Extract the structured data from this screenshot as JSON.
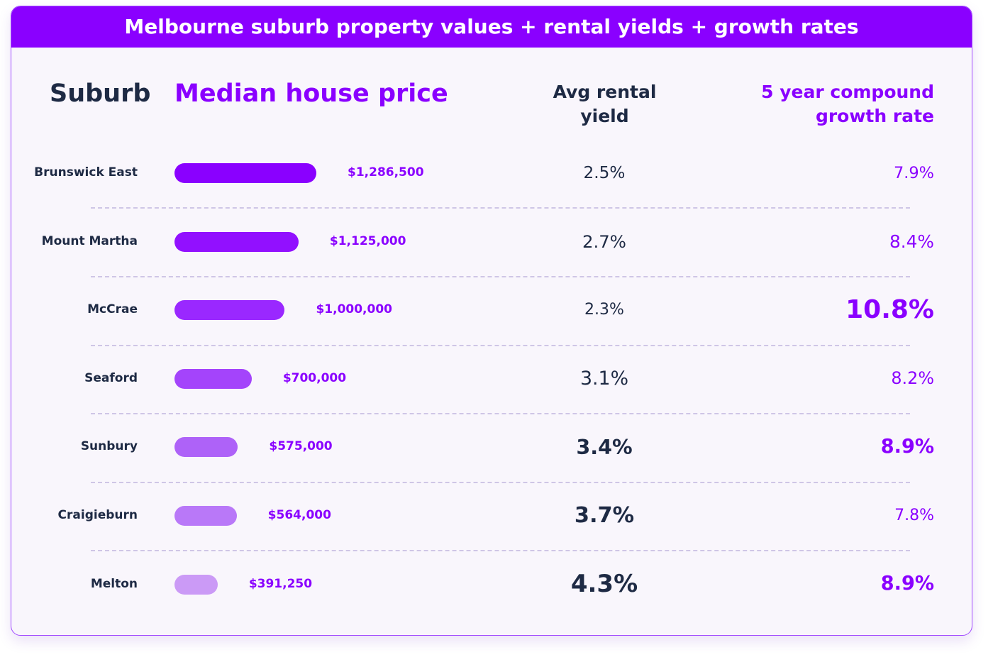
{
  "chart_data": {
    "type": "bar",
    "title": "Melbourne suburb property values + rental yields + growth rates",
    "category_header": "Suburb",
    "categories": [
      "Brunswick East",
      "Mount Martha",
      "McCrae",
      "Seaford",
      "Sunbury",
      "Craigieburn",
      "Melton"
    ],
    "series": [
      {
        "name": "Median house price",
        "values": [
          1286500,
          1125000,
          1000000,
          700000,
          575000,
          564000,
          391250
        ],
        "value_labels": [
          "$1,286,500",
          "$1,125,000",
          "$1,000,000",
          "$700,000",
          "$575,000",
          "$564,000",
          "$391,250"
        ],
        "colors": [
          "#8a00ff",
          "#9210ff",
          "#9a28ff",
          "#a444fb",
          "#ae62f8",
          "#b978f8",
          "#cb9af6"
        ]
      },
      {
        "name": "Avg rental yield",
        "values": [
          2.5,
          2.7,
          2.3,
          3.1,
          3.4,
          3.7,
          4.3
        ],
        "value_labels": [
          "2.5%",
          "2.7%",
          "2.3%",
          "3.1%",
          "3.4%",
          "3.7%",
          "4.3%"
        ],
        "color": "#1e2a44"
      },
      {
        "name": "5 year compound growth rate",
        "values": [
          7.9,
          8.4,
          10.8,
          8.2,
          8.9,
          7.8,
          8.9
        ],
        "value_labels": [
          "7.9%",
          "8.4%",
          "10.8%",
          "8.2%",
          "8.9%",
          "7.8%",
          "8.9%"
        ],
        "color": "#8a00ff"
      }
    ]
  }
}
